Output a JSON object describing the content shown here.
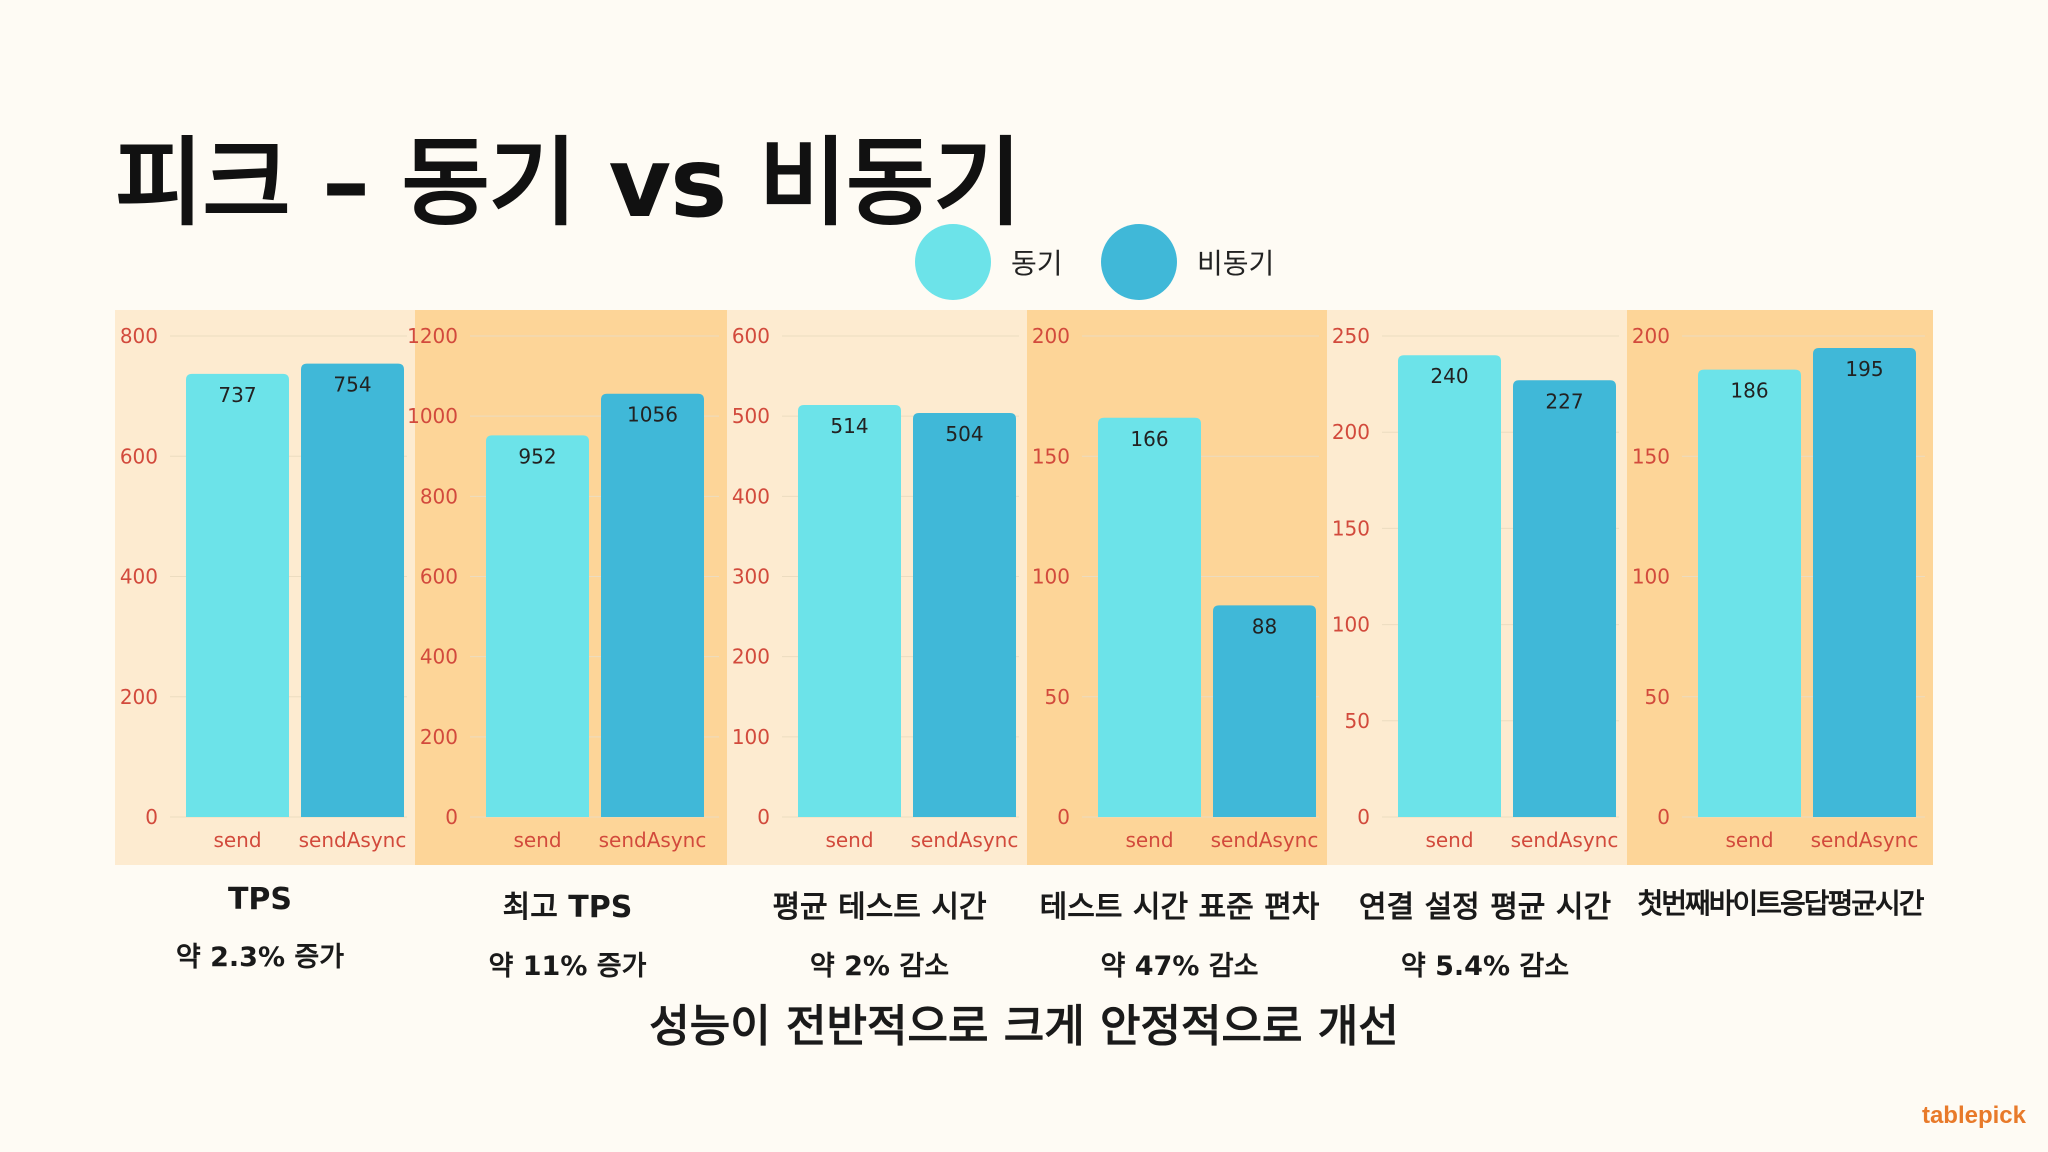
{
  "title": "피크 – 동기 vs 비동기",
  "legend": [
    {
      "label": "동기",
      "color": "#6ce3e9"
    },
    {
      "label": "비동기",
      "color": "#40b8d8"
    }
  ],
  "colors": {
    "panel_light": "#fdebd0",
    "panel_dark": "#fdd598",
    "axis_text": "#d24a3c",
    "gridline": "#ecdcc0"
  },
  "chart_data": [
    {
      "type": "bar",
      "categories": [
        "send",
        "sendAsync"
      ],
      "values": [
        737,
        754
      ],
      "ylim": [
        0,
        800
      ],
      "yticks": [
        0,
        200,
        400,
        600,
        800
      ]
    },
    {
      "type": "bar",
      "categories": [
        "send",
        "sendAsync"
      ],
      "values": [
        952,
        1056
      ],
      "ylim": [
        0,
        1200
      ],
      "yticks": [
        0,
        200,
        400,
        600,
        800,
        1000,
        1200
      ]
    },
    {
      "type": "bar",
      "categories": [
        "send",
        "sendAsync"
      ],
      "values": [
        514,
        504
      ],
      "ylim": [
        0,
        600
      ],
      "yticks": [
        0,
        100,
        200,
        300,
        400,
        500,
        600
      ]
    },
    {
      "type": "bar",
      "categories": [
        "send",
        "sendAsync"
      ],
      "values": [
        166,
        88
      ],
      "ylim": [
        0,
        200
      ],
      "yticks": [
        0,
        50,
        100,
        150,
        200
      ]
    },
    {
      "type": "bar",
      "categories": [
        "send",
        "sendAsync"
      ],
      "values": [
        240,
        227
      ],
      "ylim": [
        0,
        250
      ],
      "yticks": [
        0,
        50,
        100,
        150,
        200,
        250
      ]
    },
    {
      "type": "bar",
      "categories": [
        "send",
        "sendAsync"
      ],
      "values": [
        186,
        195
      ],
      "ylim": [
        0,
        200
      ],
      "yticks": [
        0,
        50,
        100,
        150,
        200
      ]
    }
  ],
  "captions": [
    {
      "metric": "TPS",
      "change": "약 2.3% 증가"
    },
    {
      "metric": "최고 TPS",
      "change": "약 11% 증가"
    },
    {
      "metric": "평균 테스트 시간",
      "change": "약 2% 감소"
    },
    {
      "metric": "테스트 시간 표준 편차",
      "change": "약 47% 감소"
    },
    {
      "metric": "연결 설정 평균 시간",
      "change": "약 5.4% 감소"
    },
    {
      "metric": "첫번째바이트응답평균시간",
      "change": ""
    }
  ],
  "summary": "성능이 전반적으로 크게 안정적으로 개선",
  "logo": "tablepick"
}
